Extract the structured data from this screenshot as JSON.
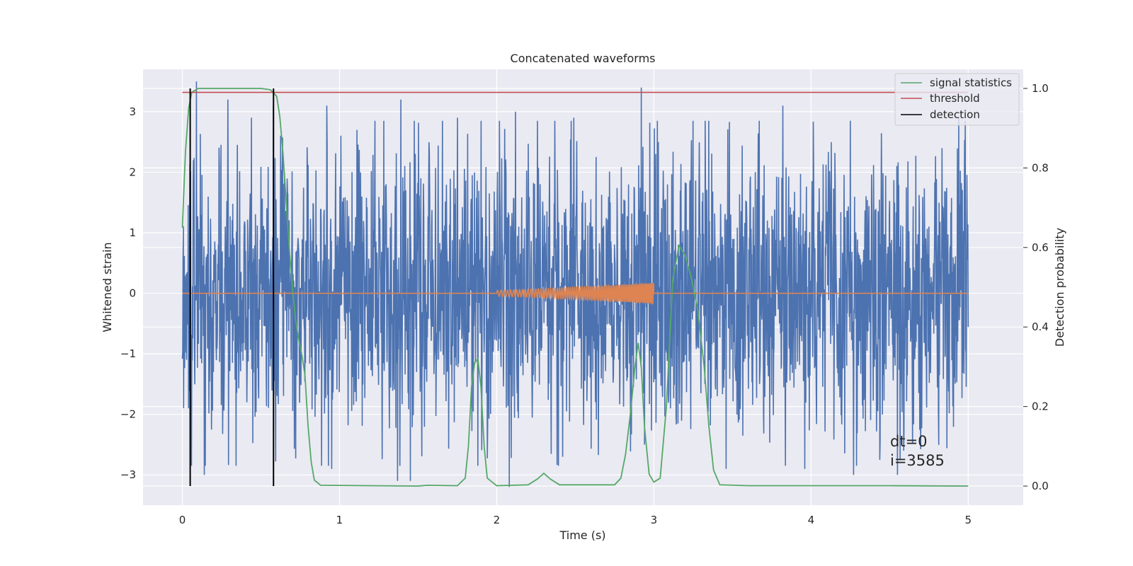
{
  "chart_data": {
    "type": "line",
    "title": "Concatenated waveforms",
    "xlabel": "Time (s)",
    "ylabel": "Whitened strain",
    "y2label": "Detection probability",
    "xlim": [
      -0.25,
      5.35
    ],
    "ylim": [
      -3.5,
      3.7
    ],
    "y2lim": [
      -0.048,
      1.048
    ],
    "x_ticks": [
      0,
      1,
      2,
      3,
      4,
      5
    ],
    "x_tick_labels": [
      "0",
      "1",
      "2",
      "3",
      "4",
      "5"
    ],
    "y_ticks": [
      -3,
      -2,
      -1,
      0,
      1,
      2,
      3
    ],
    "y_tick_labels": [
      "−3",
      "−2",
      "−1",
      "0",
      "1",
      "2",
      "3"
    ],
    "y2_ticks": [
      0.0,
      0.2,
      0.4,
      0.6,
      0.8,
      1.0
    ],
    "y2_tick_labels": [
      "0.0",
      "0.2",
      "0.4",
      "0.6",
      "0.8",
      "1.0"
    ],
    "grid": true,
    "legend_position": "upper-right",
    "annotations": [
      "dt=0",
      "i=3585"
    ],
    "series": [
      {
        "name": "",
        "axis": "left",
        "color": "#4c72b0",
        "kind": "noise",
        "x_range": [
          0,
          5
        ],
        "typical_amplitude": 1.3,
        "peaks": [
          {
            "x": 0.04,
            "y": -1.9
          },
          {
            "x": 0.07,
            "y": 2.2
          },
          {
            "x": 0.09,
            "y": 3.5
          },
          {
            "x": 0.14,
            "y": -3.0
          },
          {
            "x": 0.29,
            "y": 3.2
          },
          {
            "x": 0.44,
            "y": 2.9
          },
          {
            "x": 0.58,
            "y": 3.1
          },
          {
            "x": 0.92,
            "y": 3.1
          },
          {
            "x": 0.95,
            "y": -2.9
          },
          {
            "x": 1.11,
            "y": 2.7
          },
          {
            "x": 1.37,
            "y": -3.1
          },
          {
            "x": 1.39,
            "y": 3.2
          },
          {
            "x": 1.45,
            "y": -3.1
          },
          {
            "x": 1.75,
            "y": 2.9
          },
          {
            "x": 2.08,
            "y": -3.2
          },
          {
            "x": 2.12,
            "y": 3.0
          },
          {
            "x": 2.42,
            "y": -2.7
          },
          {
            "x": 2.49,
            "y": 2.9
          },
          {
            "x": 2.92,
            "y": 3.4
          },
          {
            "x": 2.94,
            "y": -2.5
          },
          {
            "x": 3.46,
            "y": -2.9
          },
          {
            "x": 3.82,
            "y": 3.1
          },
          {
            "x": 3.96,
            "y": -2.9
          },
          {
            "x": 4.27,
            "y": -3.0
          },
          {
            "x": 4.55,
            "y": -3.0
          },
          {
            "x": 4.59,
            "y": -2.6
          },
          {
            "x": 4.94,
            "y": 2.9
          }
        ]
      },
      {
        "name": "",
        "axis": "left",
        "color": "#dd8452",
        "kind": "chirp",
        "x_range": [
          0,
          5
        ],
        "chirp_range": [
          2.0,
          3.0
        ],
        "amplitude_range": [
          0.05,
          0.17
        ],
        "frequency_range_hz": [
          45,
          110
        ]
      },
      {
        "name": "signal statistics",
        "axis": "right",
        "color": "#55a868",
        "points": [
          [
            0.0,
            0.65
          ],
          [
            0.02,
            0.84
          ],
          [
            0.04,
            0.95
          ],
          [
            0.06,
            0.99
          ],
          [
            0.1,
            1.0
          ],
          [
            0.3,
            1.0
          ],
          [
            0.5,
            1.0
          ],
          [
            0.56,
            0.997
          ],
          [
            0.6,
            0.98
          ],
          [
            0.62,
            0.93
          ],
          [
            0.64,
            0.84
          ],
          [
            0.66,
            0.72
          ],
          [
            0.68,
            0.6
          ],
          [
            0.7,
            0.5
          ],
          [
            0.72,
            0.42
          ],
          [
            0.74,
            0.37
          ],
          [
            0.76,
            0.33
          ],
          [
            0.78,
            0.28
          ],
          [
            0.8,
            0.15
          ],
          [
            0.82,
            0.06
          ],
          [
            0.84,
            0.015
          ],
          [
            0.88,
            0.002
          ],
          [
            1.2,
            0.001
          ],
          [
            1.5,
            0.0
          ],
          [
            1.56,
            0.002
          ],
          [
            1.75,
            0.001
          ],
          [
            1.8,
            0.02
          ],
          [
            1.82,
            0.1
          ],
          [
            1.84,
            0.25
          ],
          [
            1.86,
            0.31
          ],
          [
            1.88,
            0.32
          ],
          [
            1.9,
            0.25
          ],
          [
            1.92,
            0.1
          ],
          [
            1.94,
            0.02
          ],
          [
            2.0,
            0.001
          ],
          [
            2.2,
            0.003
          ],
          [
            2.26,
            0.018
          ],
          [
            2.3,
            0.032
          ],
          [
            2.34,
            0.018
          ],
          [
            2.4,
            0.003
          ],
          [
            2.75,
            0.003
          ],
          [
            2.79,
            0.02
          ],
          [
            2.82,
            0.08
          ],
          [
            2.85,
            0.18
          ],
          [
            2.88,
            0.3
          ],
          [
            2.9,
            0.36
          ],
          [
            2.92,
            0.3
          ],
          [
            2.94,
            0.15
          ],
          [
            2.97,
            0.03
          ],
          [
            3.0,
            0.01
          ],
          [
            3.04,
            0.02
          ],
          [
            3.08,
            0.2
          ],
          [
            3.12,
            0.52
          ],
          [
            3.16,
            0.605
          ],
          [
            3.2,
            0.58
          ],
          [
            3.24,
            0.52
          ],
          [
            3.28,
            0.44
          ],
          [
            3.32,
            0.3
          ],
          [
            3.35,
            0.15
          ],
          [
            3.38,
            0.04
          ],
          [
            3.42,
            0.003
          ],
          [
            3.6,
            0.001
          ],
          [
            4.0,
            0.001
          ],
          [
            4.5,
            0.001
          ],
          [
            5.0,
            0.0
          ]
        ]
      },
      {
        "name": "threshold",
        "axis": "right",
        "color": "#c44e52",
        "points": [
          [
            0.0,
            0.99
          ],
          [
            5.0,
            0.99
          ]
        ]
      },
      {
        "name": "detection",
        "axis": "right",
        "color": "#000000",
        "vertical_lines": [
          0.05,
          0.58
        ],
        "span": [
          0.0,
          1.0
        ]
      }
    ]
  }
}
